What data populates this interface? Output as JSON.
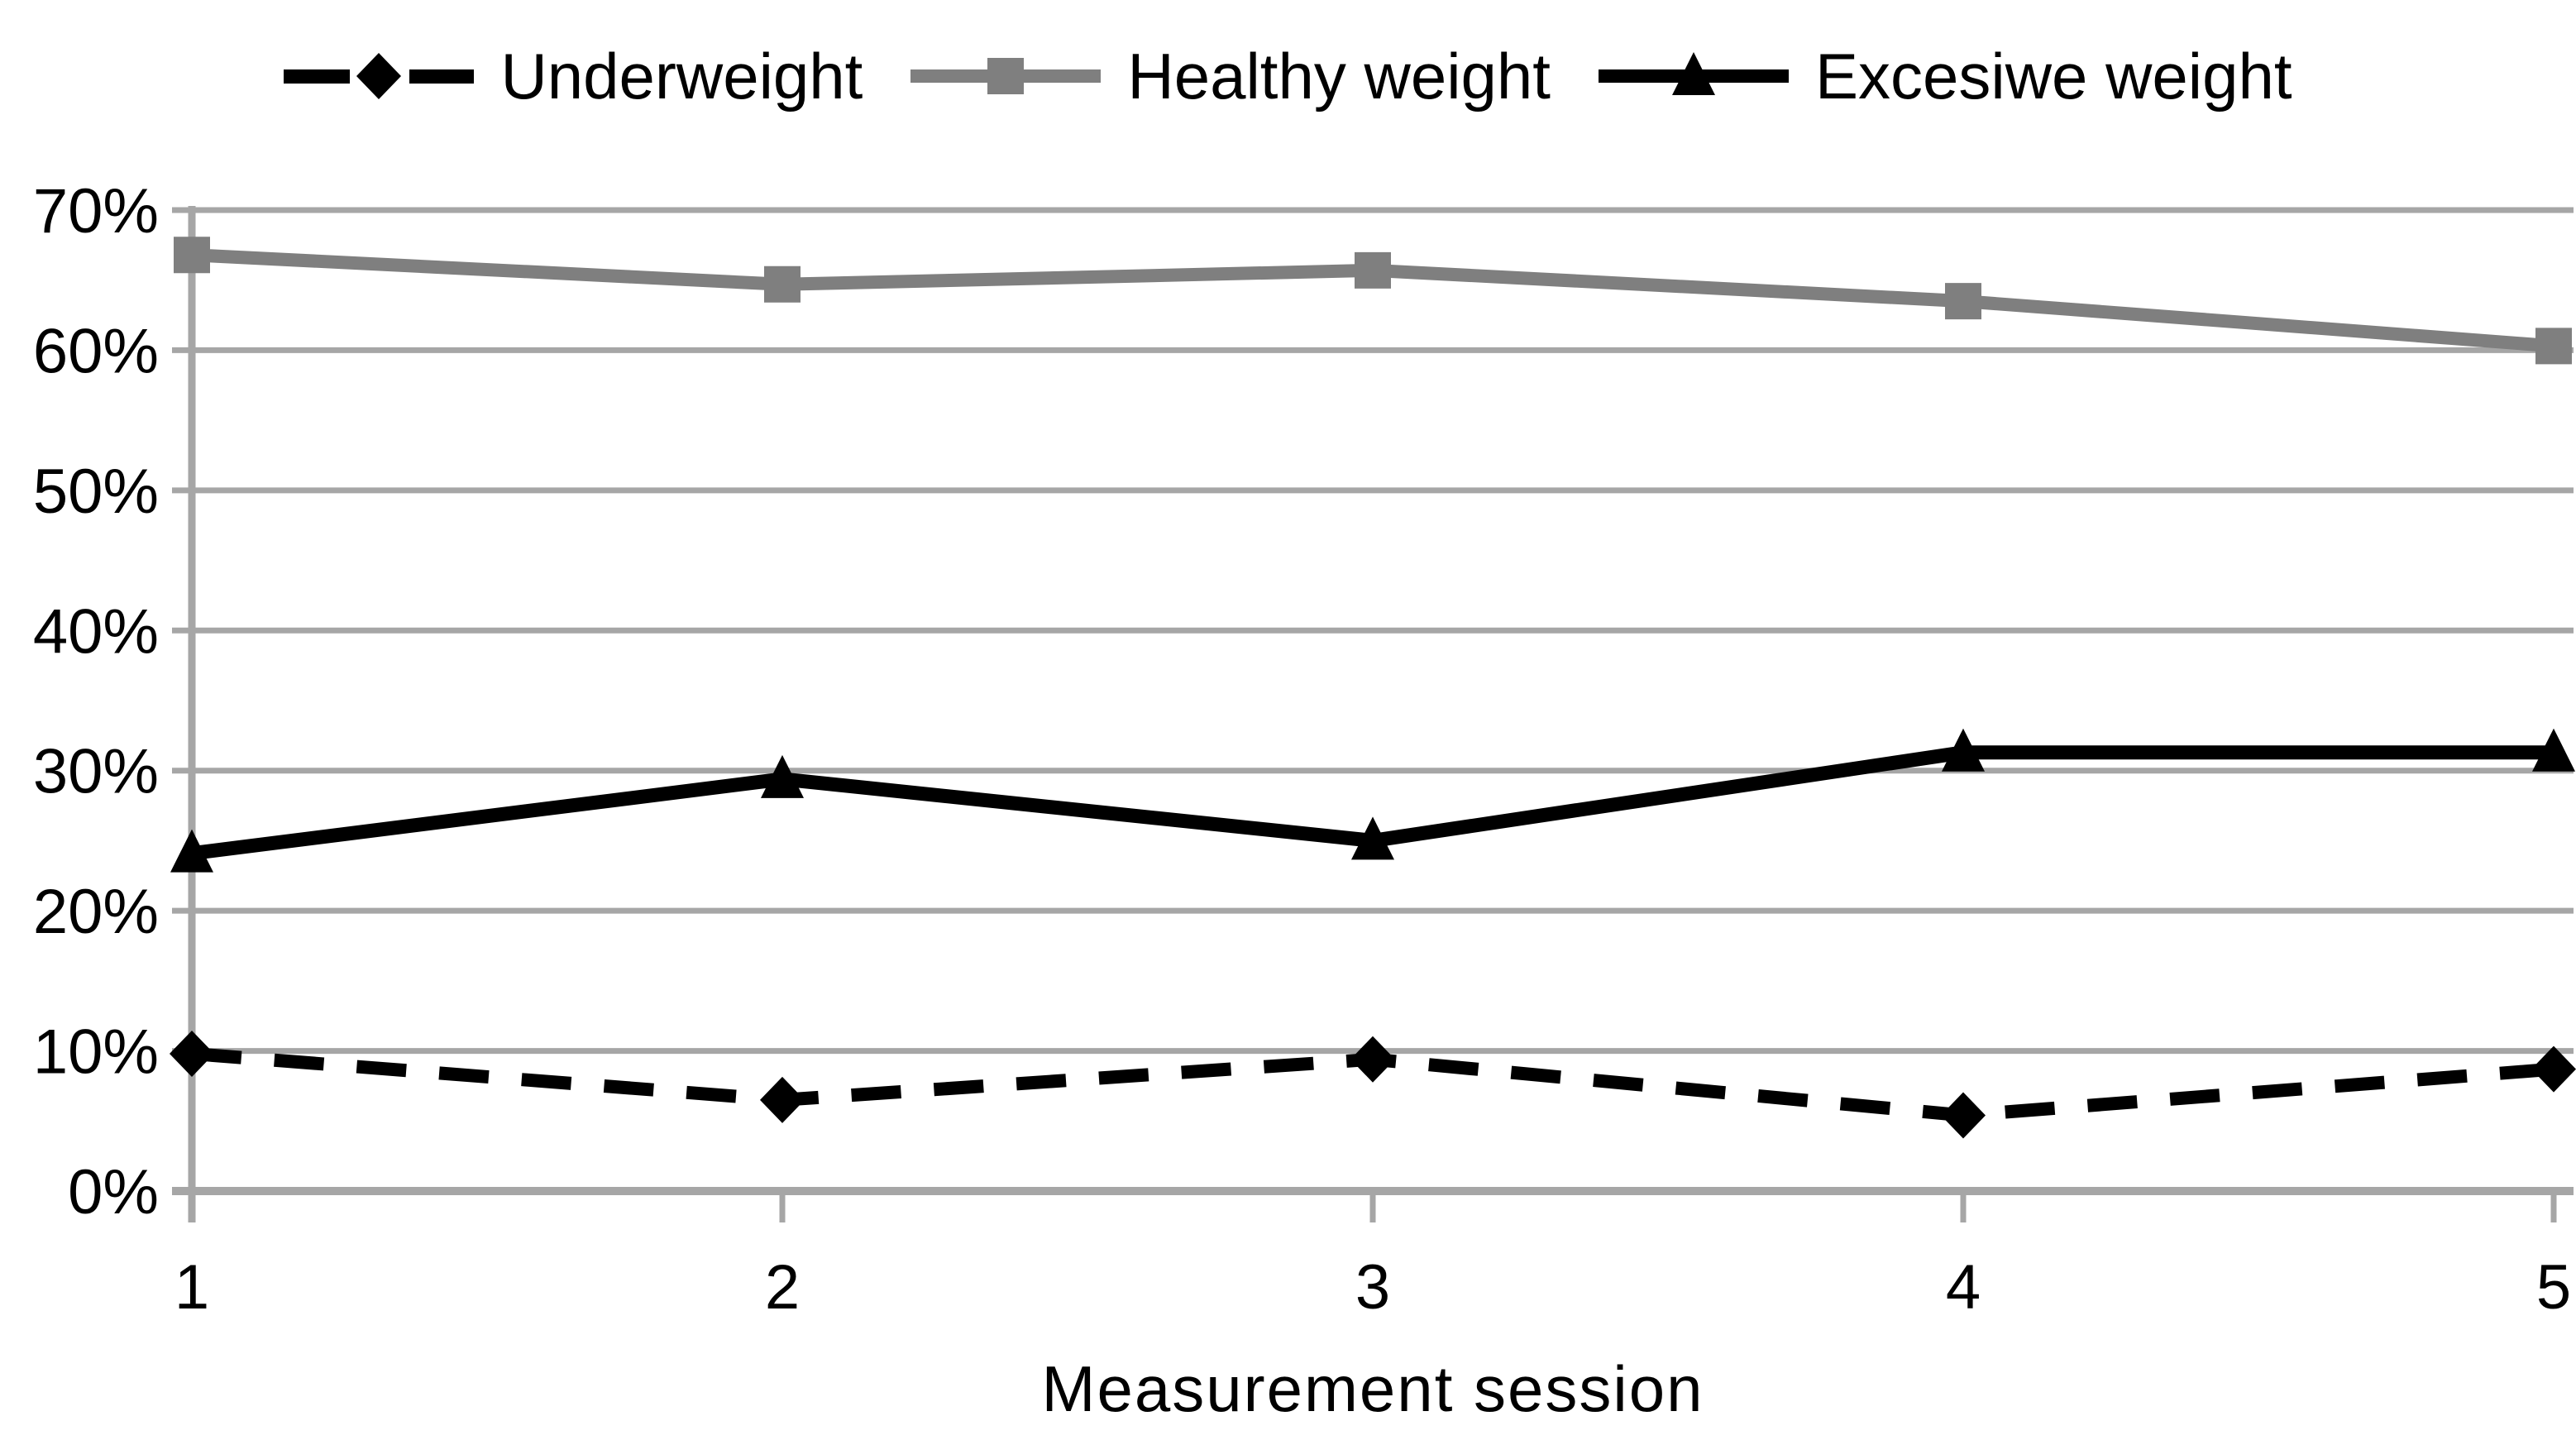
{
  "chart_data": {
    "type": "line",
    "title": "",
    "x": [
      1,
      2,
      3,
      4,
      5
    ],
    "x_tick_labels": [
      "1",
      "2",
      "3",
      "4",
      "5"
    ],
    "xlabel": "Measurement session",
    "ylabel": "",
    "ylim": [
      0,
      70
    ],
    "y_ticks": [
      0,
      10,
      20,
      30,
      40,
      50,
      60,
      70
    ],
    "y_tick_labels": [
      "0%",
      "10%",
      "20%",
      "30%",
      "40%",
      "50%",
      "60%",
      "70%"
    ],
    "grid": true,
    "legend_position": "top-center",
    "series": [
      {
        "name": "Underweight",
        "values": [
          9.8,
          6.5,
          9.4,
          5.4,
          8.7
        ],
        "color": "#000000",
        "line_style": "dashed",
        "marker": "diamond"
      },
      {
        "name": "Healthy weight",
        "values": [
          66.8,
          64.7,
          65.7,
          63.5,
          60.3
        ],
        "color": "#7f7f7f",
        "line_style": "solid",
        "marker": "square"
      },
      {
        "name": "Excesiwe weight",
        "values": [
          24.1,
          29.4,
          25.0,
          31.3,
          31.3
        ],
        "color": "#000000",
        "line_style": "solid",
        "marker": "triangle"
      }
    ],
    "colors": {
      "gridline": "#a6a6a6",
      "axis": "#a6a6a6",
      "text": "#000000",
      "background": "#ffffff"
    }
  }
}
